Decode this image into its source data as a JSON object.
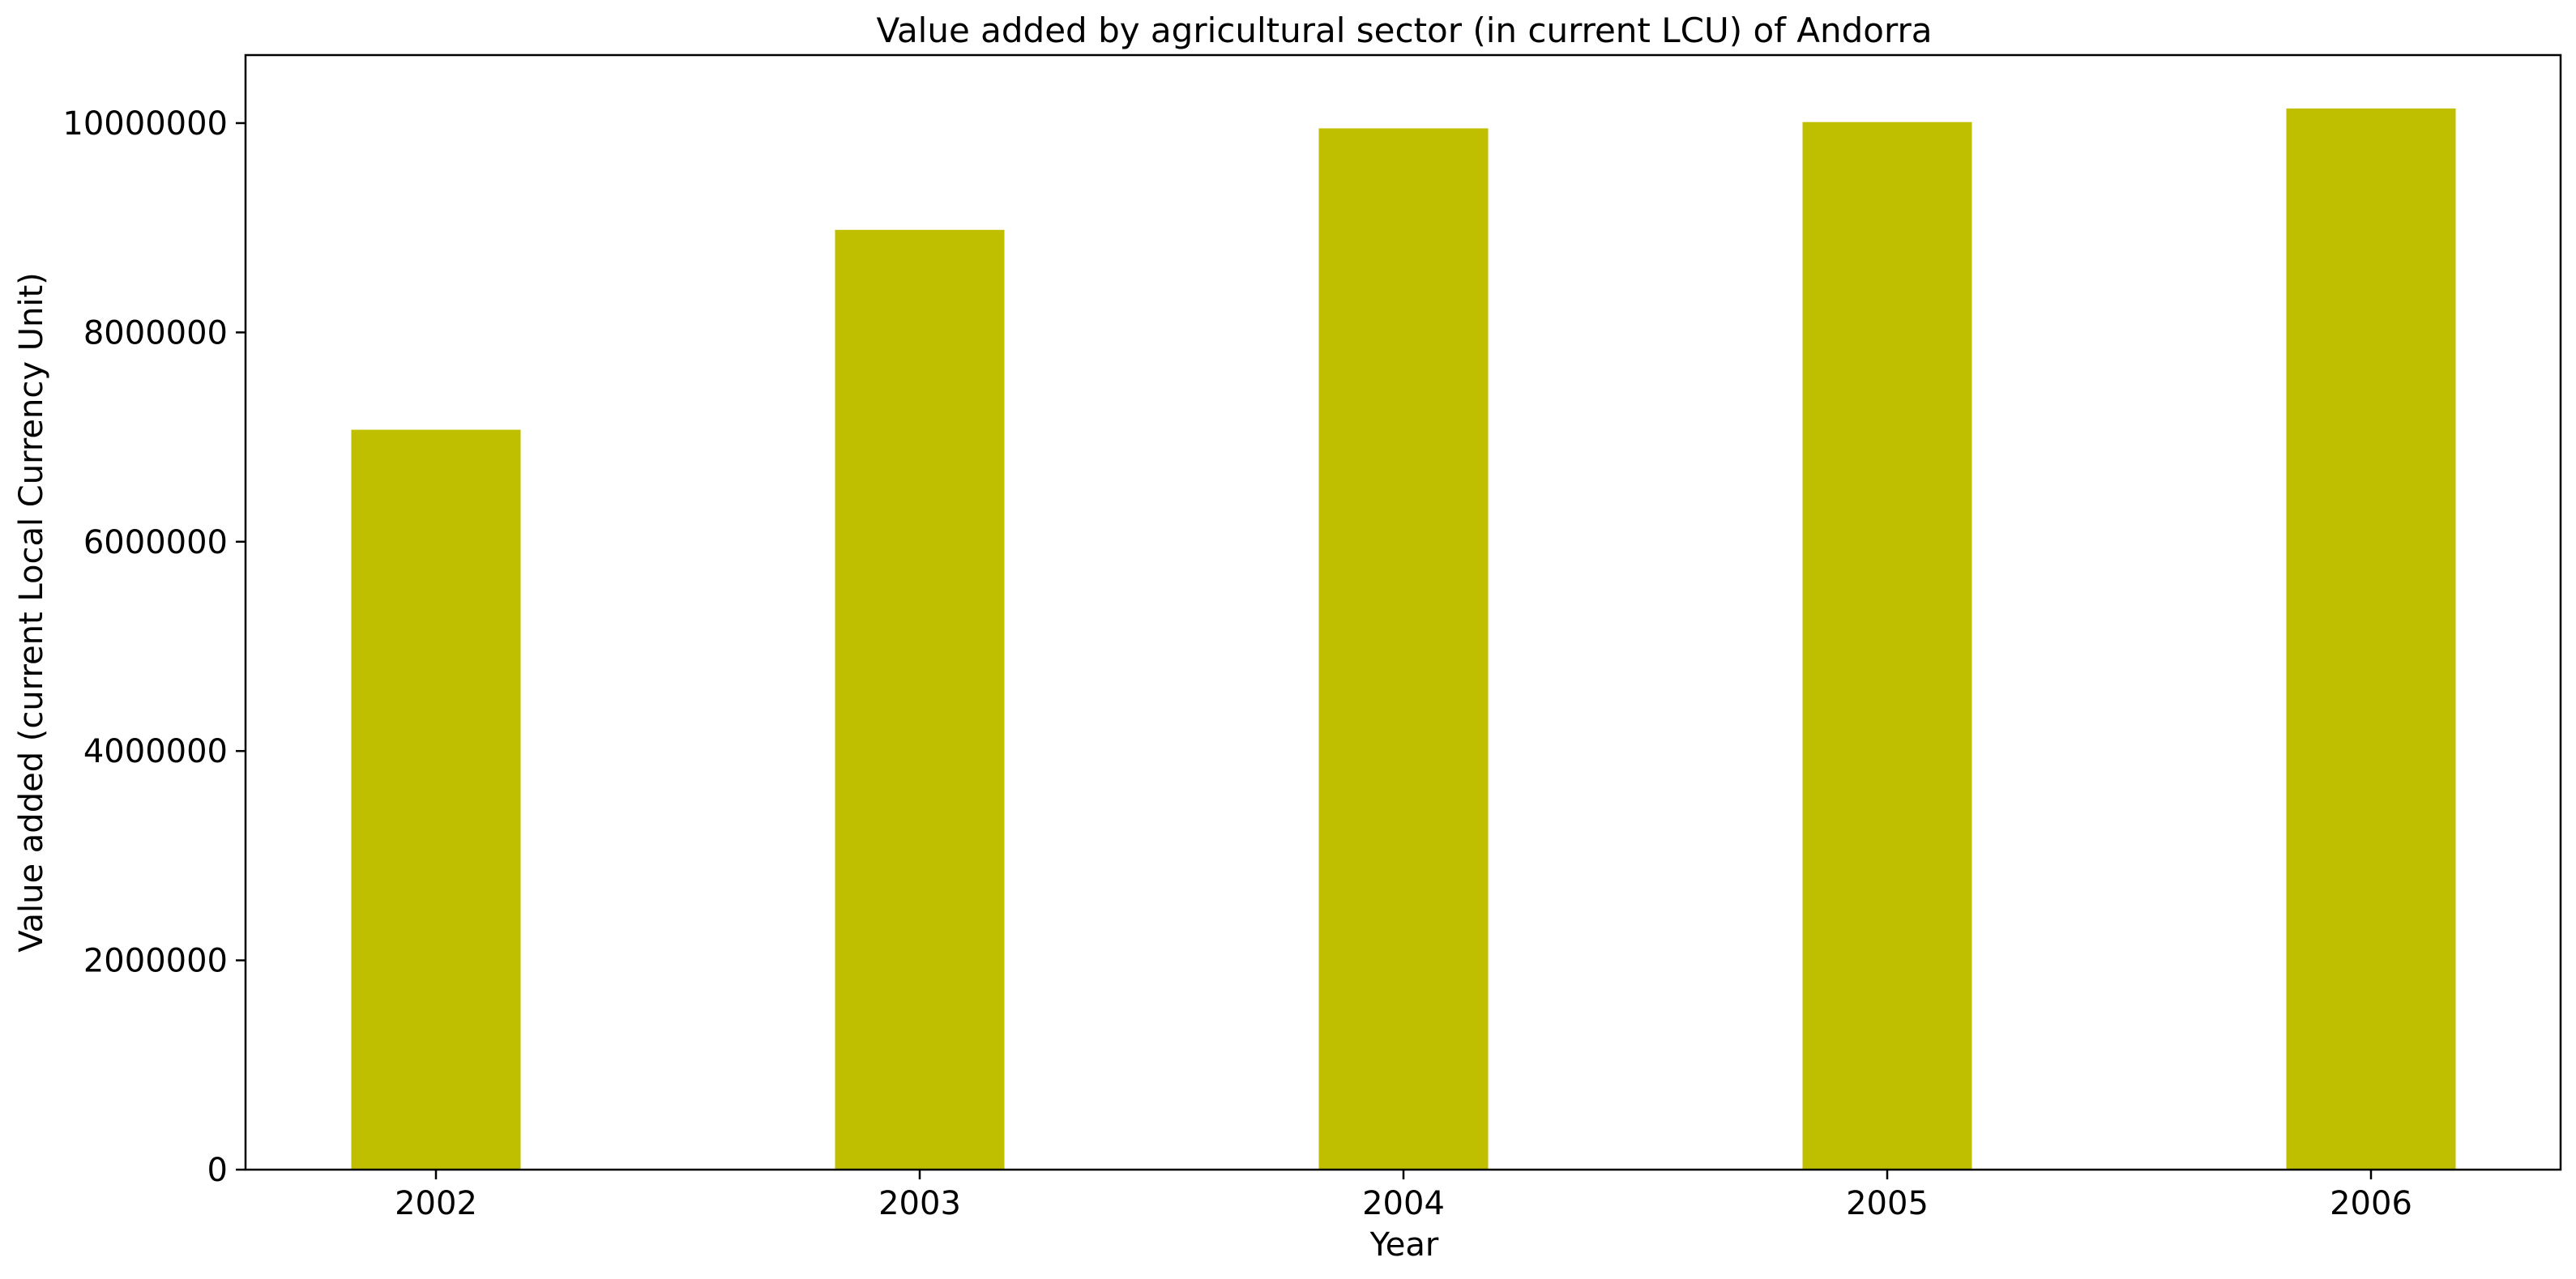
{
  "chart_data": {
    "type": "bar",
    "title": "Value added by agricultural sector (in current LCU) of Andorra",
    "xlabel": "Year",
    "ylabel": "Value added (current Local Currency Unit)",
    "categories": [
      "2002",
      "2003",
      "2004",
      "2005",
      "2006"
    ],
    "series": [
      {
        "values": [
          7070000,
          8980000,
          9950000,
          10010000,
          10140000
        ]
      }
    ],
    "color": "#bfbf00",
    "ylim": [
      0,
      10650000
    ],
    "yticks": [
      0,
      2000000,
      4000000,
      6000000,
      8000000,
      10000000
    ],
    "ytick_labels": [
      "0",
      "2000000",
      "4000000",
      "6000000",
      "8000000",
      "10000000"
    ],
    "grid": false,
    "legend": "none"
  }
}
